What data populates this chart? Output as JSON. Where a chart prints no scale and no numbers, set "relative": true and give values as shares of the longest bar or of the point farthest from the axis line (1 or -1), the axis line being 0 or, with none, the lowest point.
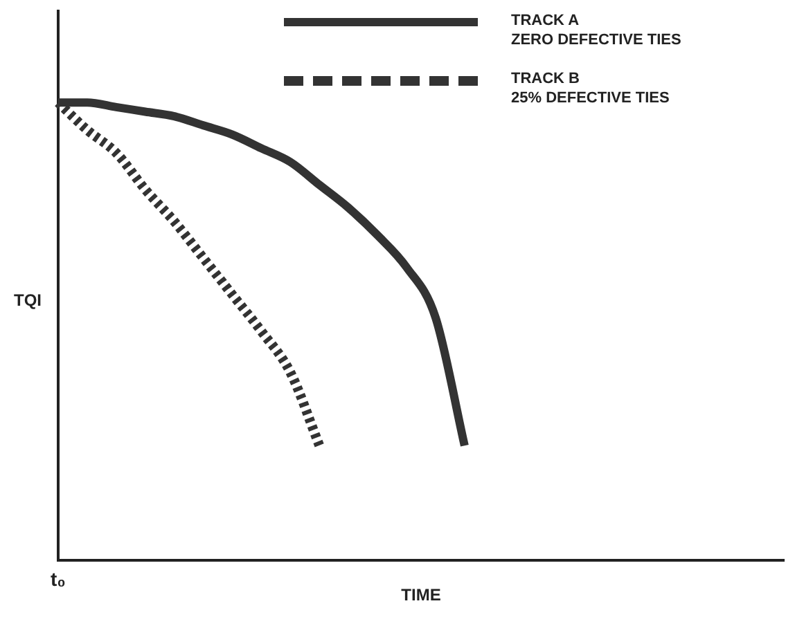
{
  "chart_data": {
    "type": "line",
    "relative": true,
    "xlabel": "TIME",
    "ylabel": "TQI",
    "legend": "top right",
    "marker": "none",
    "grid": false,
    "annotations": [
      "t₀"
    ],
    "categories": [
      null,
      null,
      null,
      null,
      null,
      null,
      null,
      null,
      null,
      null,
      null,
      null,
      null,
      null,
      null,
      null,
      null,
      null,
      null,
      null,
      null,
      null,
      null,
      null,
      null,
      null
    ],
    "series": [
      {
        "name": "TRACK A\nZERO DEFECTIVE TIES",
        "color": "#333333",
        "line_style": "solid",
        "values": [
          1,
          1,
          0.99,
          0.98,
          0.97,
          0.95,
          0.93,
          0.9,
          0.87,
          0.82,
          0.77,
          0.71,
          0.64,
          0.53,
          0.25,
          null,
          null,
          null,
          null,
          null,
          null,
          null,
          null,
          null,
          null,
          null
        ]
      },
      {
        "name": "TRACK B\n25% DEFECTIVE TIES",
        "color": "#333333",
        "line_style": "dotted",
        "values": [
          1,
          0.94,
          0.89,
          0.81,
          0.74,
          0.66,
          0.58,
          0.5,
          0.41,
          0.25,
          null,
          null,
          null,
          null,
          null,
          null,
          null,
          null,
          null,
          null,
          null,
          null,
          null,
          null,
          null,
          null
        ]
      }
    ]
  }
}
